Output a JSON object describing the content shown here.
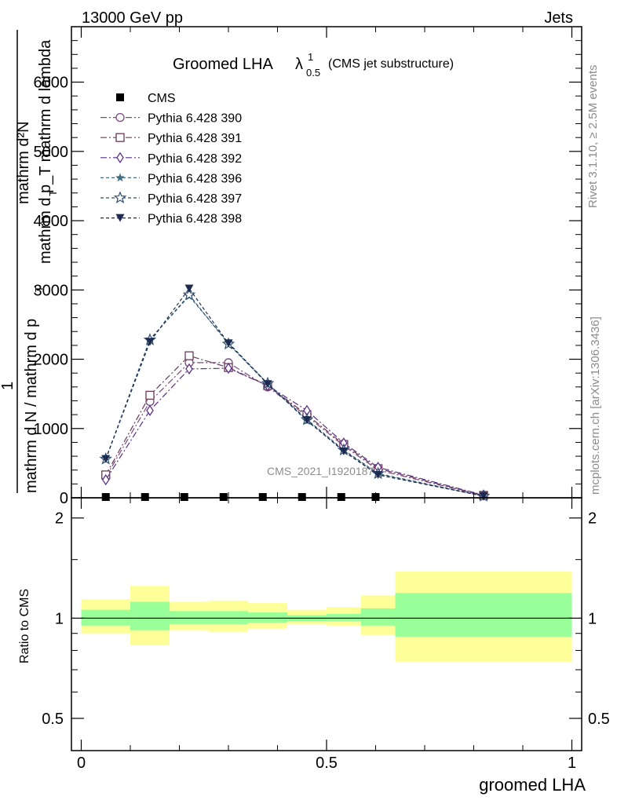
{
  "header": {
    "left": "13000 GeV pp",
    "right": "Jets"
  },
  "side": {
    "rivet": "Rivet 3.1.10, ≥ 2.5M events",
    "mcplots": "mcplots.cern.ch [arXiv:1306.3436]"
  },
  "plot_title": {
    "main": "Groomed LHA",
    "lambda": "λ",
    "sup": "1",
    "sub": "0.5",
    "paren": "(CMS jet substructure)"
  },
  "watermark": "CMS_2021_I1920187",
  "main_ylabel": {
    "numerator_line1": "mathrm d²N",
    "numerator_line2": "mathrm d p_T mathrm d lambda",
    "numerator_sub": "T",
    "one": "1",
    "denominator_line": "mathrm d N / mathrm d p",
    "denominator_sub": "T"
  },
  "ratio_ylabel": "Ratio to CMS",
  "xlabel": "groomed LHA",
  "colors": {
    "p390": "#7a4a7a",
    "p391": "#6b3a5b",
    "p392": "#5b2f86",
    "p396": "#3f6f82",
    "p397": "#2f4f6f",
    "p398": "#1c2b4f",
    "band_inner": "#99ff99",
    "band_outer": "#ffff99"
  },
  "chart_data": [
    {
      "type": "line",
      "panel": "main",
      "ylim": [
        0,
        6800
      ],
      "xlim": [
        -0.02,
        1.02
      ],
      "yticks": [
        0,
        1000,
        2000,
        3000,
        4000,
        5000,
        6000
      ],
      "ytick_labels": [
        "0",
        "1000",
        "2000",
        "3000",
        "4000",
        "5000",
        "6000"
      ],
      "legend_position": "top-left",
      "series": [
        {
          "name": "CMS",
          "color": "#000000",
          "marker": "square-filled",
          "dash": "none",
          "x": [
            0.05,
            0.13,
            0.21,
            0.29,
            0.37,
            0.45,
            0.53,
            0.6
          ],
          "y": [
            0,
            0,
            0,
            0,
            0,
            0,
            0,
            0
          ]
        },
        {
          "name": "Pythia 6.428 390",
          "color": "#7a4a7a",
          "marker": "circle-open",
          "dash": "8,3,2,3",
          "x": [
            0.05,
            0.14,
            0.22,
            0.3,
            0.38,
            0.46,
            0.535,
            0.605,
            0.82
          ],
          "y": [
            300,
            1390,
            1950,
            1950,
            1600,
            1180,
            750,
            400,
            30
          ]
        },
        {
          "name": "Pythia 6.428 391",
          "color": "#6b3a5b",
          "marker": "square-open",
          "dash": "8,3,2,3",
          "x": [
            0.05,
            0.14,
            0.22,
            0.3,
            0.38,
            0.46,
            0.535,
            0.605,
            0.82
          ],
          "y": [
            330,
            1480,
            2050,
            1880,
            1620,
            1200,
            770,
            420,
            35
          ]
        },
        {
          "name": "Pythia 6.428 392",
          "color": "#5b2f86",
          "marker": "diamond-open",
          "dash": "8,3,2,3",
          "x": [
            0.05,
            0.14,
            0.22,
            0.3,
            0.38,
            0.46,
            0.535,
            0.605,
            0.82
          ],
          "y": [
            260,
            1260,
            1860,
            1870,
            1620,
            1260,
            790,
            440,
            40
          ]
        },
        {
          "name": "Pythia 6.428 396",
          "color": "#3f6f82",
          "marker": "star-filled",
          "dash": "4,3",
          "x": [
            0.05,
            0.14,
            0.22,
            0.3,
            0.38,
            0.46,
            0.535,
            0.605,
            0.82
          ],
          "y": [
            560,
            2290,
            2910,
            2240,
            1650,
            1110,
            680,
            340,
            25
          ]
        },
        {
          "name": "Pythia 6.428 397",
          "color": "#2f4f6f",
          "marker": "star-open",
          "dash": "4,3",
          "x": [
            0.05,
            0.14,
            0.22,
            0.3,
            0.38,
            0.46,
            0.535,
            0.605,
            0.82
          ],
          "y": [
            560,
            2280,
            2930,
            2220,
            1650,
            1130,
            690,
            350,
            25
          ]
        },
        {
          "name": "Pythia 6.428 398",
          "color": "#1c2b4f",
          "marker": "triangle-down-filled",
          "dash": "4,3",
          "x": [
            0.05,
            0.14,
            0.22,
            0.3,
            0.38,
            0.46,
            0.535,
            0.605,
            0.82
          ],
          "y": [
            560,
            2250,
            3020,
            2230,
            1640,
            1120,
            670,
            330,
            25
          ]
        }
      ]
    },
    {
      "type": "area",
      "panel": "ratio",
      "ylim": [
        0.4,
        2.3
      ],
      "y_scale": "log",
      "yticks": [
        0.5,
        1,
        2
      ],
      "ytick_labels": [
        "0.5",
        "1",
        "2"
      ],
      "xlim": [
        -0.02,
        1.02
      ],
      "xticks": [
        0,
        0.5,
        1
      ],
      "xtick_labels": [
        "0",
        "0.5",
        "1"
      ],
      "reference_line": 1,
      "bins": [
        {
          "lo": 0.0,
          "hi": 0.1,
          "inner": [
            0.95,
            1.06
          ],
          "outer": [
            0.9,
            1.14
          ]
        },
        {
          "lo": 0.1,
          "hi": 0.18,
          "inner": [
            0.92,
            1.12
          ],
          "outer": [
            0.83,
            1.25
          ]
        },
        {
          "lo": 0.18,
          "hi": 0.26,
          "inner": [
            0.96,
            1.05
          ],
          "outer": [
            0.92,
            1.12
          ]
        },
        {
          "lo": 0.26,
          "hi": 0.34,
          "inner": [
            0.96,
            1.05
          ],
          "outer": [
            0.91,
            1.13
          ]
        },
        {
          "lo": 0.34,
          "hi": 0.42,
          "inner": [
            0.97,
            1.04
          ],
          "outer": [
            0.93,
            1.11
          ]
        },
        {
          "lo": 0.42,
          "hi": 0.5,
          "inner": [
            0.98,
            1.02
          ],
          "outer": [
            0.96,
            1.06
          ]
        },
        {
          "lo": 0.5,
          "hi": 0.57,
          "inner": [
            0.98,
            1.03
          ],
          "outer": [
            0.95,
            1.08
          ]
        },
        {
          "lo": 0.57,
          "hi": 0.64,
          "inner": [
            0.95,
            1.07
          ],
          "outer": [
            0.89,
            1.17
          ]
        },
        {
          "lo": 0.64,
          "hi": 1.0,
          "inner": [
            0.88,
            1.19
          ],
          "outer": [
            0.74,
            1.38
          ]
        }
      ]
    }
  ]
}
